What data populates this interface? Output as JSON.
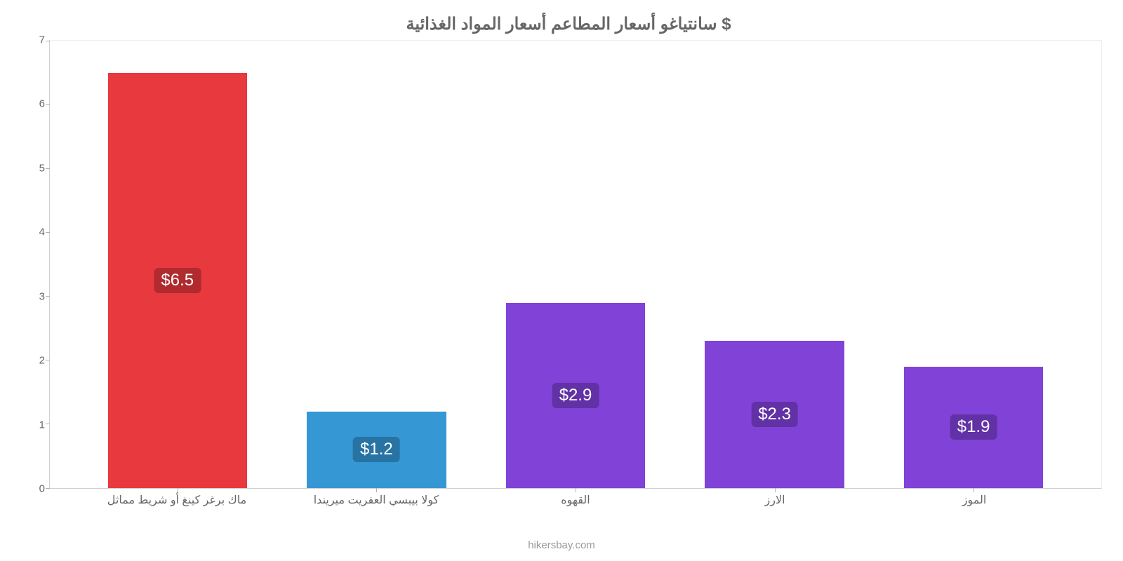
{
  "chart": {
    "type": "bar",
    "title": "سانتياغو أسعار المطاعم أسعار المواد الغذائية $",
    "title_fontsize": 24,
    "title_color": "#666666",
    "background_color": "#ffffff",
    "axis_color": "#d0d0d0",
    "tick_label_color": "#666666",
    "tick_label_fontsize": 15,
    "x_label_fontsize": 16,
    "ylim": [
      0,
      7
    ],
    "ytick_step": 1,
    "yticks": [
      0,
      1,
      2,
      3,
      4,
      5,
      6,
      7
    ],
    "bar_width_pct": 70,
    "categories": [
      "ماك برغر كينغ أو شريط مماثل",
      "كولا بيبسي العفريت ميريندا",
      "القهوه",
      "الارز",
      "الموز"
    ],
    "values": [
      6.5,
      1.2,
      2.9,
      2.3,
      1.9
    ],
    "value_labels": [
      "$6.5",
      "$1.2",
      "$2.9",
      "$2.3",
      "$1.9"
    ],
    "bar_colors": [
      "#e8393e",
      "#3597d4",
      "#8142d7",
      "#8142d7",
      "#8142d7"
    ],
    "badge_bg_colors": [
      "#b02a2e",
      "#2773a3",
      "#6231a5",
      "#6231a5",
      "#6231a5"
    ],
    "badge_text_color": "#ffffff",
    "badge_fontsize": 24,
    "attribution": "hikersbay.com",
    "attribution_color": "#999999",
    "attribution_fontsize": 15
  }
}
